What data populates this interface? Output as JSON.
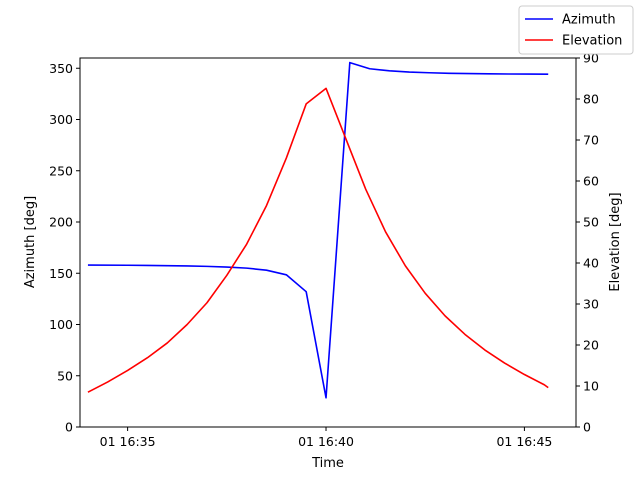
{
  "chart_data": {
    "type": "line",
    "xlabel": "Time",
    "ylabel_left": "Azimuth [deg]",
    "ylabel_right": "Elevation [deg]",
    "x_tick_labels": [
      "01 16:35",
      "01 16:40",
      "01 16:45"
    ],
    "x_ticks_min": [
      35,
      40,
      45
    ],
    "xlim_min": [
      33.8,
      46.3
    ],
    "ylim_left": [
      0,
      360
    ],
    "ylim_right": [
      0,
      90
    ],
    "yticks_left": [
      0,
      50,
      100,
      150,
      200,
      250,
      300,
      350
    ],
    "yticks_right": [
      0,
      10,
      20,
      30,
      40,
      50,
      60,
      70,
      80,
      90
    ],
    "legend_position": "upper right",
    "series": [
      {
        "name": "Azimuth",
        "axis": "left",
        "color": "#0000ff",
        "x_min": [
          34.0,
          35.0,
          35.5,
          36.0,
          36.5,
          37.0,
          37.5,
          38.0,
          38.5,
          39.0,
          39.5,
          40.0,
          40.6,
          41.1,
          41.6,
          42.1,
          42.6,
          43.1,
          43.6,
          44.1,
          44.6,
          45.1,
          45.6
        ],
        "values": [
          158,
          157.8,
          157.6,
          157.4,
          157.1,
          156.7,
          156.0,
          155.0,
          153.0,
          148.5,
          132.0,
          28.5,
          355.5,
          349.5,
          347.5,
          346.3,
          345.6,
          345.1,
          344.8,
          344.6,
          344.4,
          344.3,
          344.2
        ]
      },
      {
        "name": "Elevation",
        "axis": "right",
        "color": "#ff0000",
        "x_min": [
          34.0,
          34.5,
          35.0,
          35.5,
          36.0,
          36.5,
          37.0,
          37.5,
          38.0,
          38.5,
          39.0,
          39.5,
          40.0,
          40.5,
          41.0,
          41.5,
          42.0,
          42.5,
          43.0,
          43.5,
          44.0,
          44.5,
          45.0,
          45.5,
          45.6
        ],
        "values": [
          8.5,
          11.0,
          13.8,
          16.9,
          20.5,
          25.0,
          30.3,
          37.0,
          44.6,
          54.0,
          65.6,
          78.8,
          82.6,
          70.3,
          58.0,
          47.6,
          39.3,
          32.6,
          27.1,
          22.6,
          18.8,
          15.6,
          12.8,
          10.3,
          9.6
        ]
      }
    ]
  }
}
